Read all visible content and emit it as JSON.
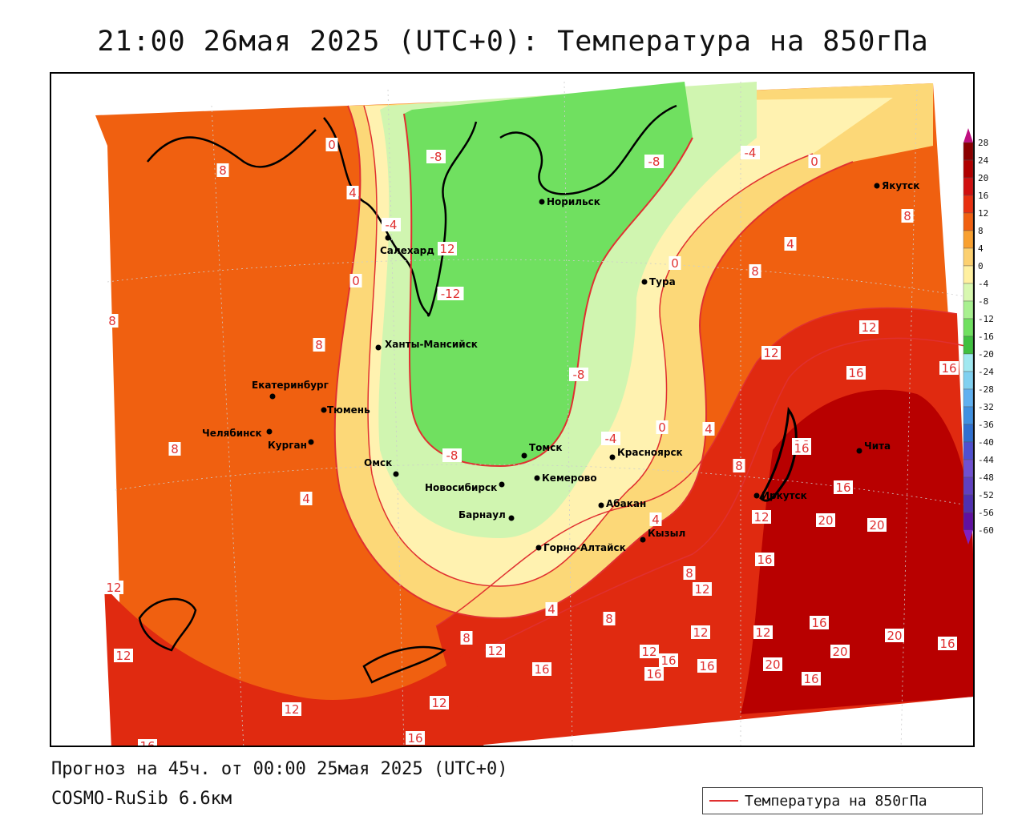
{
  "title": "21:00 26мая 2025 (UTC+0): Температура на 850гПа",
  "footer": {
    "forecast": "Прогноз на 45ч. от 00:00 25мая 2025 (UTC+0)",
    "model": "COSMO-RuSib 6.6км"
  },
  "legend": {
    "label": "Температура на 850гПа",
    "line_color": "#e03030"
  },
  "colorbar": {
    "ticks": [
      "28",
      "24",
      "20",
      "16",
      "12",
      "8",
      "4",
      "0",
      "-4",
      "-8",
      "-12",
      "-16",
      "-20",
      "-24",
      "-28",
      "-32",
      "-36",
      "-40",
      "-44",
      "-48",
      "-52",
      "-56",
      "-60"
    ],
    "colors": [
      "#8b0000",
      "#b00000",
      "#d01010",
      "#e83010",
      "#f06010",
      "#f8a030",
      "#fcd070",
      "#fff0a0",
      "#d8f8b0",
      "#a8f090",
      "#70e060",
      "#40c040",
      "#a0e8f0",
      "#80d0f0",
      "#60b0f0",
      "#4090e0",
      "#3070d0",
      "#5050d0",
      "#7050d0",
      "#6040c0",
      "#5030b0",
      "#6010a0"
    ],
    "top_arrow_color": "#c01080",
    "bottom_arrow_color": "#8020c0"
  },
  "colors": {
    "warm_dark": "#b80000",
    "warm": "#e02a10",
    "orange": "#f06010",
    "light_orange": "#f8b040",
    "yellow": "#fcd878",
    "pale": "#fff2b0",
    "pale_green": "#d0f5b0",
    "green": "#90ec80",
    "mid_green": "#70e060",
    "isoline": "#e03030"
  },
  "cities": [
    {
      "name": "Норильск"
    },
    {
      "name": "Якутск"
    },
    {
      "name": "Салехард"
    },
    {
      "name": "Тура"
    },
    {
      "name": "Ханты-Мансийск"
    },
    {
      "name": "Екатеринбург"
    },
    {
      "name": "Тюмень"
    },
    {
      "name": "Челябинск"
    },
    {
      "name": "Курган"
    },
    {
      "name": "Омск"
    },
    {
      "name": "Новосибирск"
    },
    {
      "name": "Томск"
    },
    {
      "name": "Кемерово"
    },
    {
      "name": "Красноярск"
    },
    {
      "name": "Барнаул"
    },
    {
      "name": "Абакан"
    },
    {
      "name": "Горно-Алтайск"
    },
    {
      "name": "Кызыл"
    },
    {
      "name": "Иркутск"
    },
    {
      "name": "Чита"
    }
  ],
  "isolabels": [
    "0",
    "-8",
    "-8",
    "-4",
    "0",
    "8",
    "4",
    "-4",
    "12",
    "8",
    "0",
    "-12",
    "0",
    "4",
    "8",
    "8",
    "8",
    "-8",
    "12",
    "16",
    "16",
    "12",
    "16",
    "-4",
    "0",
    "4",
    "8",
    "-8",
    "4",
    "4",
    "8",
    "12",
    "16",
    "16",
    "12",
    "20",
    "20",
    "16",
    "12",
    "12",
    "16",
    "8",
    "4",
    "8",
    "12",
    "12",
    "16",
    "12",
    "16",
    "16",
    "20",
    "20",
    "16",
    "16",
    "20",
    "16",
    "12",
    "12",
    "16",
    "8",
    "12",
    "16"
  ]
}
